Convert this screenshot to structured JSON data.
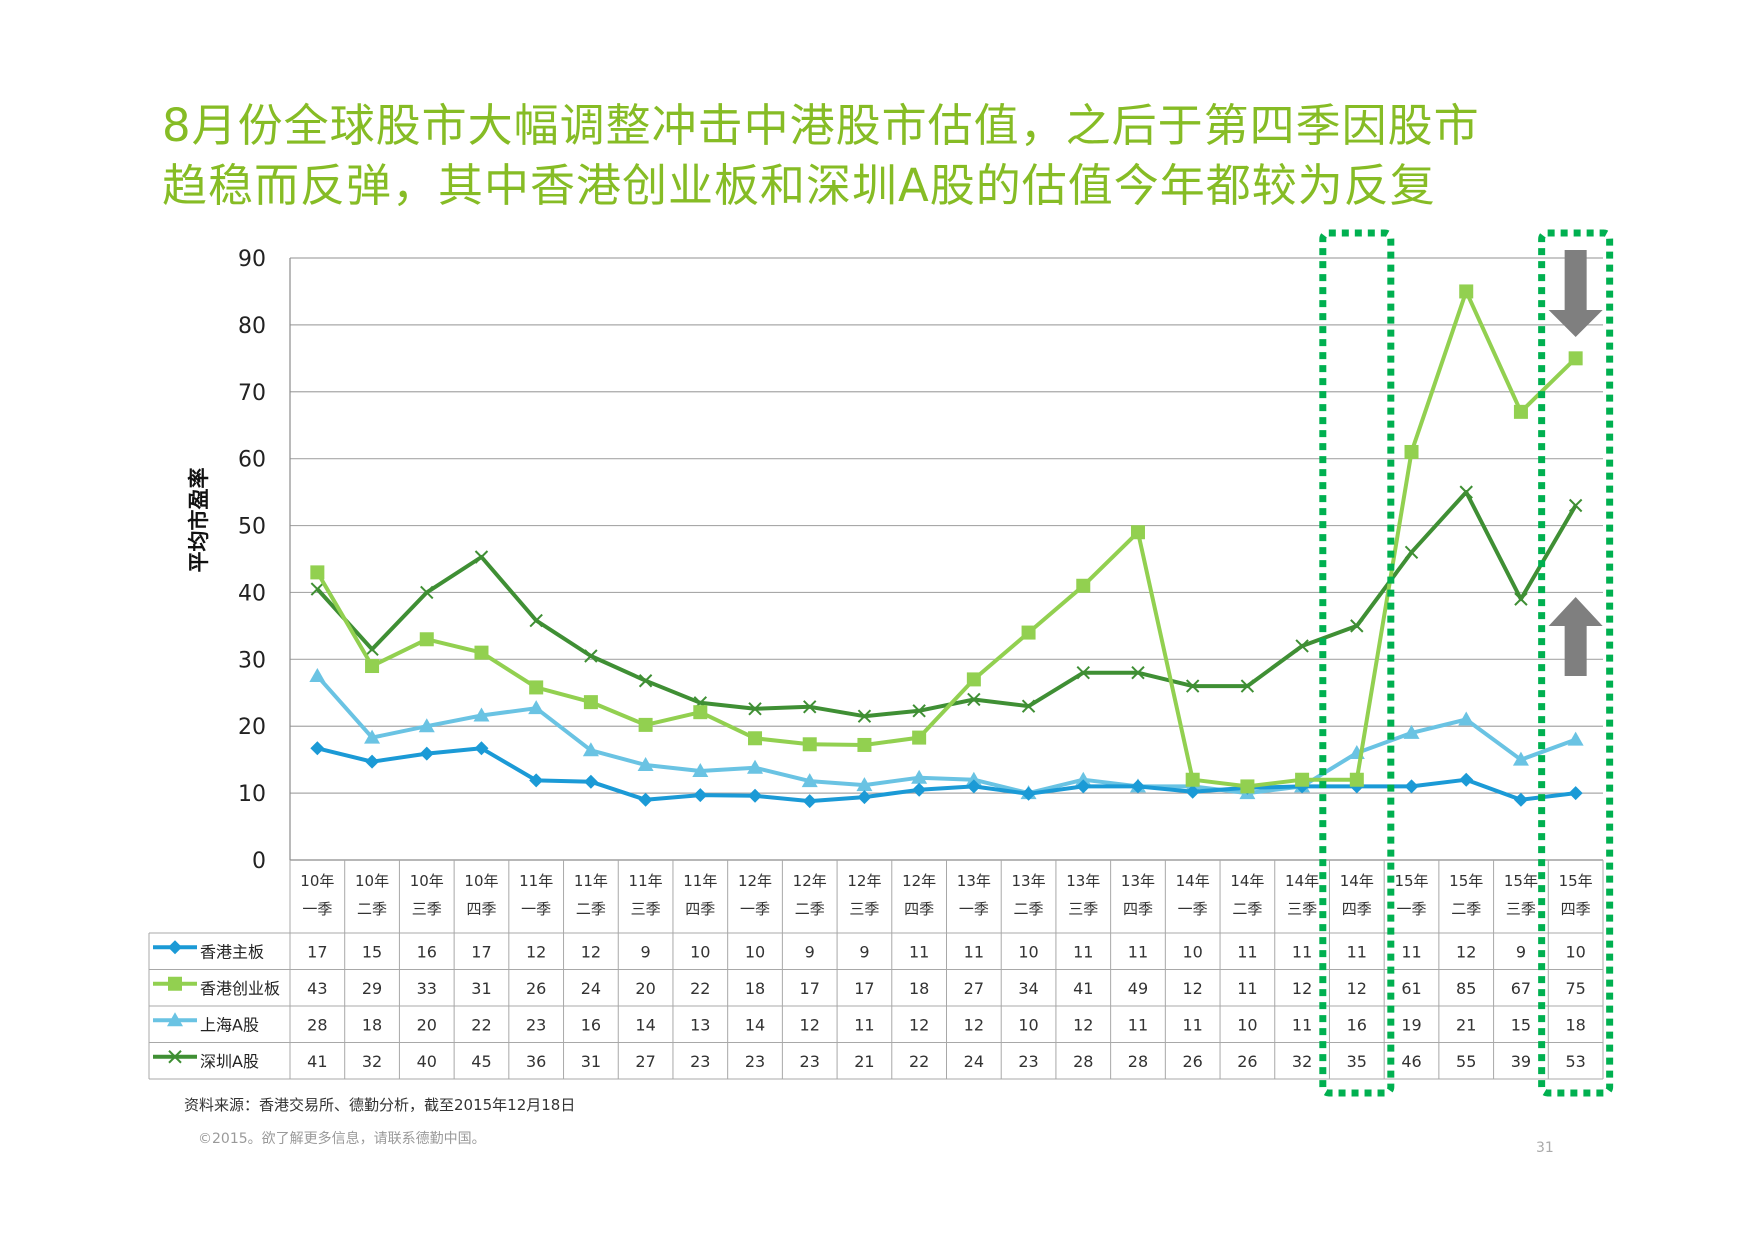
{
  "title": {
    "line1": "8月份全球股市大幅调整冲击中港股市估值，之后于第四季因股市",
    "line2": "趋稳而反弹，其中香港创业板和深圳A股的估值今年都较为反复"
  },
  "footer": {
    "source": "资料来源：香港交易所、德勤分析，截至2015年12月18日",
    "copyright": "©2015。欲了解更多信息，请联系德勤中国。",
    "page_number": "31"
  },
  "chart_data": {
    "type": "line",
    "ylabel": "平均市盈率",
    "ylim": [
      0,
      90
    ],
    "yticks": [
      0,
      10,
      20,
      30,
      40,
      50,
      60,
      70,
      80,
      90
    ],
    "grid": true,
    "legend": "data-table-left",
    "categories": [
      {
        "year": "10年",
        "quarter": "一季"
      },
      {
        "year": "10年",
        "quarter": "二季"
      },
      {
        "year": "10年",
        "quarter": "三季"
      },
      {
        "year": "10年",
        "quarter": "四季"
      },
      {
        "year": "11年",
        "quarter": "一季"
      },
      {
        "year": "11年",
        "quarter": "二季"
      },
      {
        "year": "11年",
        "quarter": "三季"
      },
      {
        "year": "11年",
        "quarter": "四季"
      },
      {
        "year": "12年",
        "quarter": "一季"
      },
      {
        "year": "12年",
        "quarter": "二季"
      },
      {
        "year": "12年",
        "quarter": "三季"
      },
      {
        "year": "12年",
        "quarter": "四季"
      },
      {
        "year": "13年",
        "quarter": "一季"
      },
      {
        "year": "13年",
        "quarter": "二季"
      },
      {
        "year": "13年",
        "quarter": "三季"
      },
      {
        "year": "13年",
        "quarter": "四季"
      },
      {
        "year": "14年",
        "quarter": "一季"
      },
      {
        "year": "14年",
        "quarter": "二季"
      },
      {
        "year": "14年",
        "quarter": "三季"
      },
      {
        "year": "14年",
        "quarter": "四季"
      },
      {
        "year": "15年",
        "quarter": "一季"
      },
      {
        "year": "15年",
        "quarter": "二季"
      },
      {
        "year": "15年",
        "quarter": "三季"
      },
      {
        "year": "15年",
        "quarter": "四季"
      }
    ],
    "series": [
      {
        "name": "香港主板",
        "color": "#1b9ad6",
        "marker": "diamond",
        "plot": [
          16.7,
          14.7,
          15.9,
          16.7,
          11.9,
          11.7,
          9.0,
          9.7,
          9.6,
          8.8,
          9.4,
          10.5,
          11.0,
          9.9,
          11.0,
          11.0,
          10.2,
          10.8,
          11.0,
          11.0,
          11.0,
          12.0,
          9.0,
          10.0
        ],
        "labels": [
          "17",
          "15",
          "16",
          "17",
          "12",
          "12",
          "9",
          "10",
          "10",
          "9",
          "9",
          "11",
          "11",
          "10",
          "11",
          "11",
          "10",
          "11",
          "11",
          "11",
          "11",
          "12",
          "9",
          "10"
        ]
      },
      {
        "name": "香港创业板",
        "color": "#92d050",
        "marker": "square",
        "plot": [
          43.0,
          29.0,
          33.0,
          31.0,
          25.8,
          23.6,
          20.2,
          22.1,
          18.2,
          17.3,
          17.2,
          18.3,
          27.0,
          34.0,
          41.0,
          49.0,
          12.0,
          11.0,
          12.0,
          12.0,
          61.0,
          85.0,
          67.0,
          75.0
        ],
        "labels": [
          "43",
          "29",
          "33",
          "31",
          "26",
          "24",
          "20",
          "22",
          "18",
          "17",
          "17",
          "18",
          "27",
          "34",
          "41",
          "49",
          "12",
          "11",
          "12",
          "12",
          "61",
          "85",
          "67",
          "75"
        ]
      },
      {
        "name": "上海A股",
        "color": "#6ac3e3",
        "marker": "triangle",
        "plot": [
          27.5,
          18.3,
          20.0,
          21.6,
          22.7,
          16.4,
          14.2,
          13.3,
          13.8,
          11.8,
          11.2,
          12.3,
          12.0,
          10.0,
          12.0,
          11.0,
          11.0,
          10.0,
          11.0,
          16.0,
          19.0,
          21.0,
          15.0,
          18.0
        ],
        "labels": [
          "28",
          "18",
          "20",
          "22",
          "23",
          "16",
          "14",
          "13",
          "14",
          "12",
          "11",
          "12",
          "12",
          "10",
          "12",
          "11",
          "11",
          "10",
          "11",
          "16",
          "19",
          "21",
          "15",
          "18"
        ]
      },
      {
        "name": "深圳A股",
        "color": "#3f8f34",
        "marker": "x",
        "plot": [
          40.5,
          31.5,
          40.0,
          45.3,
          35.8,
          30.5,
          26.8,
          23.5,
          22.6,
          22.9,
          21.5,
          22.3,
          24.0,
          23.0,
          28.0,
          28.0,
          26.0,
          26.0,
          32.0,
          35.0,
          46.0,
          55.0,
          39.0,
          53.0
        ],
        "labels": [
          "41",
          "32",
          "40",
          "45",
          "36",
          "31",
          "27",
          "23",
          "23",
          "23",
          "21",
          "22",
          "24",
          "23",
          "28",
          "28",
          "26",
          "26",
          "32",
          "35",
          "46",
          "55",
          "39",
          "53"
        ]
      }
    ],
    "annotations": [
      {
        "type": "dotted-highlight",
        "category_index": 19,
        "color": "#00b050"
      },
      {
        "type": "dotted-highlight",
        "category_index": 23,
        "color": "#00b050"
      },
      {
        "type": "arrow-down",
        "category_index": 23,
        "color": "#7f7f7f"
      },
      {
        "type": "arrow-up",
        "category_index": 23,
        "color": "#7f7f7f"
      }
    ]
  }
}
